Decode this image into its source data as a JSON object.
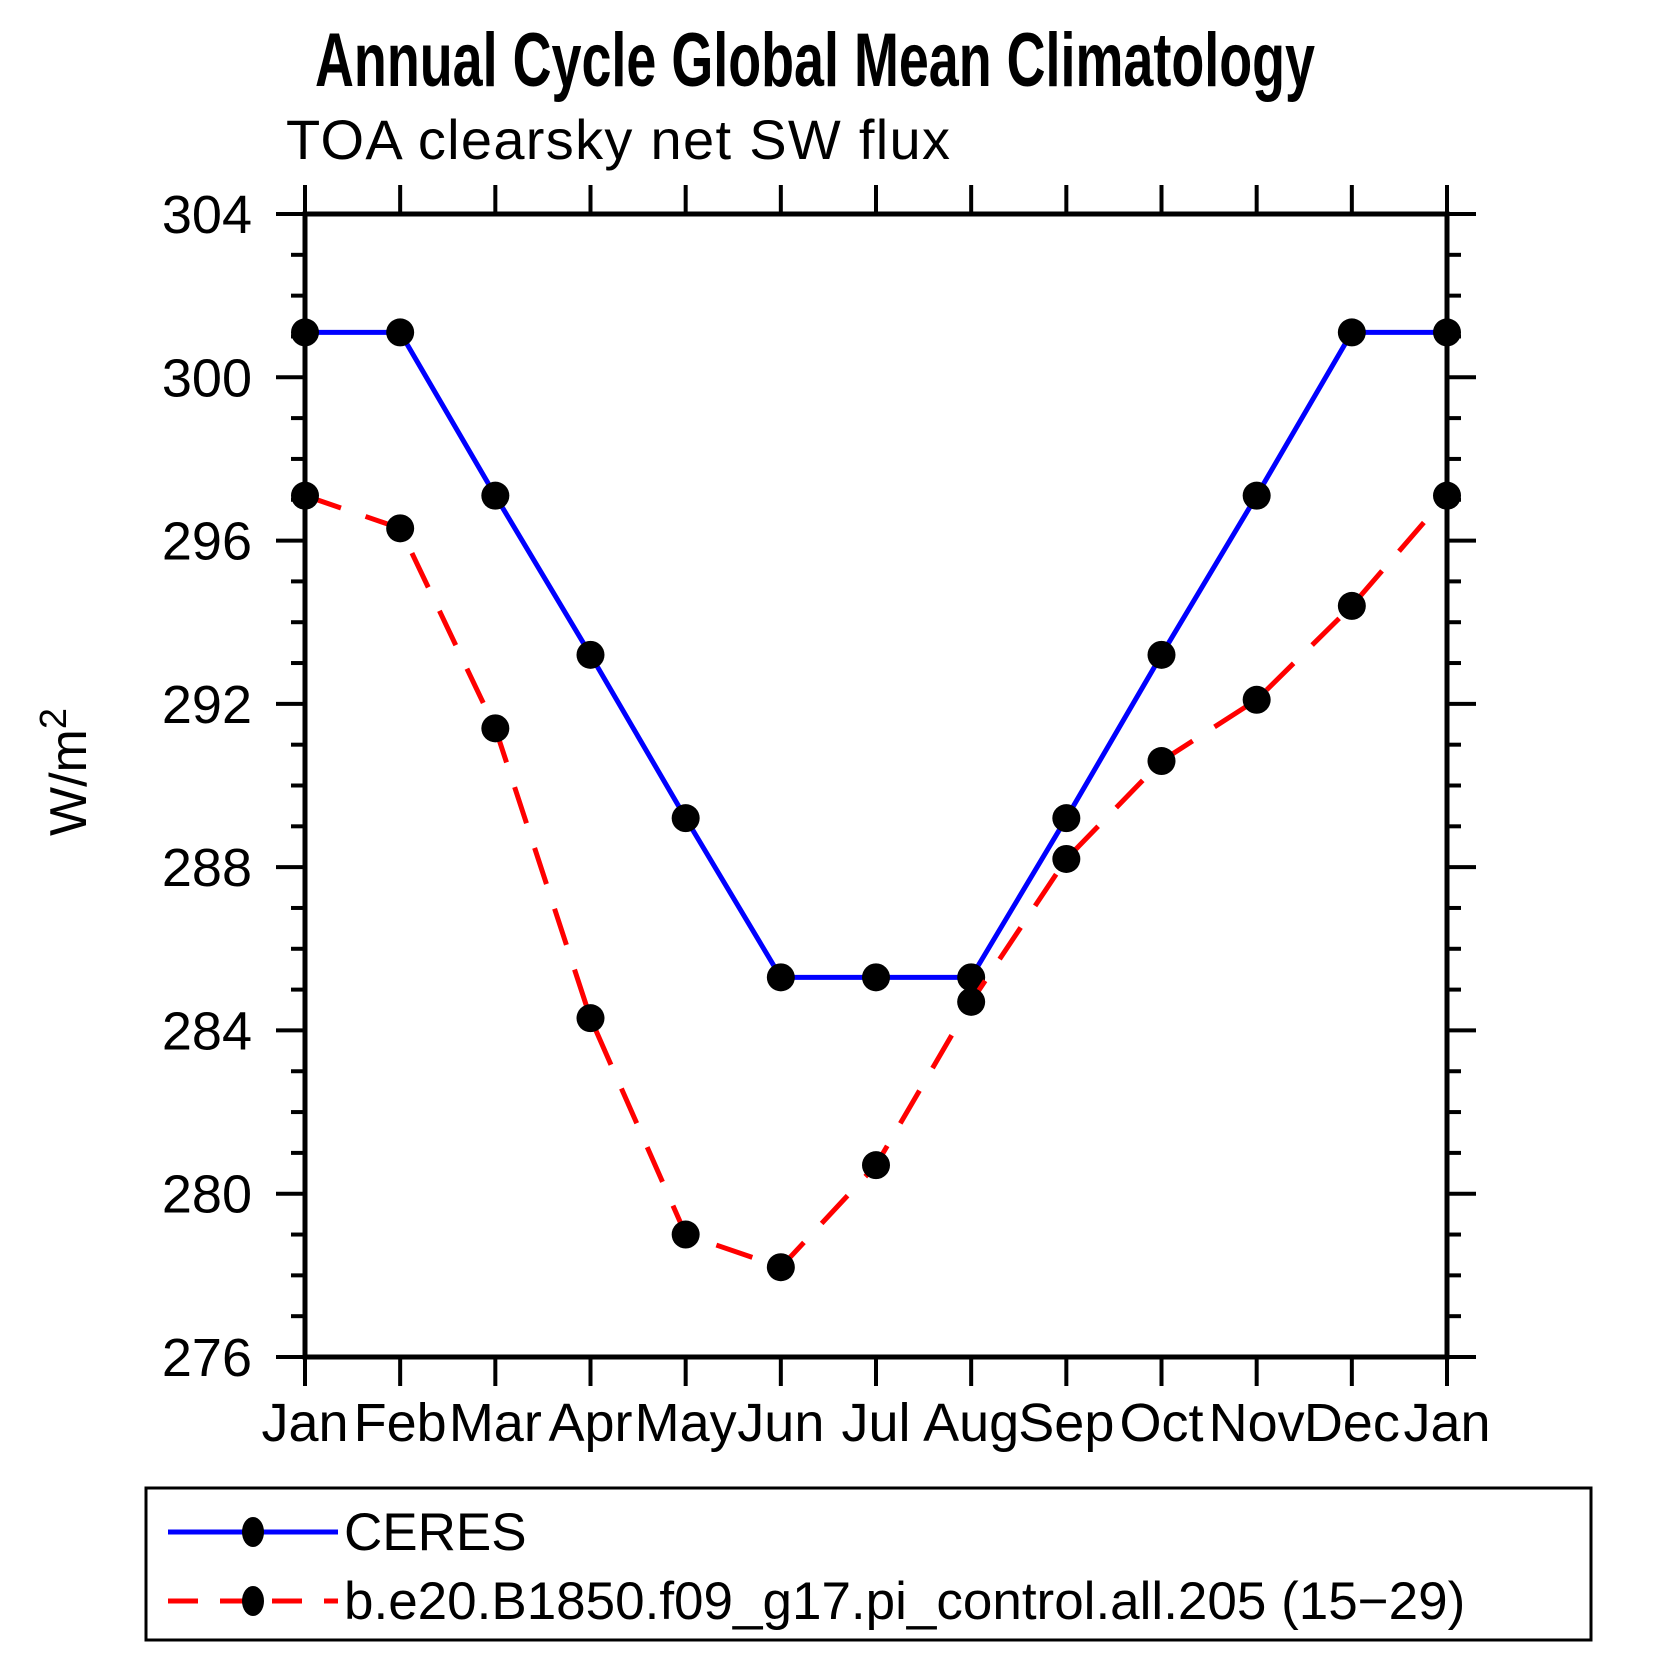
{
  "page": {
    "background": "#ffffff",
    "foreground": "#000000"
  },
  "title": {
    "text": "Annual Cycle Global Mean Climatology"
  },
  "subtitle": {
    "text": "TOA clearsky net SW flux"
  },
  "y_axis": {
    "label_base": "W/m",
    "label_exponent": "2",
    "major_tick_values": [
      304,
      300,
      296,
      292,
      288,
      284,
      280,
      276
    ]
  },
  "chart_data": {
    "type": "line",
    "title": "Annual Cycle Global Mean Climatology",
    "subtitle": "TOA clearsky net SW flux",
    "ylabel": "W/m^2",
    "xlabel": "",
    "categories": [
      "Jan",
      "Feb",
      "Mar",
      "Apr",
      "May",
      "Jun",
      "Jul",
      "Aug",
      "Sep",
      "Oct",
      "Nov",
      "Dec",
      "Jan"
    ],
    "ylim": [
      276,
      304
    ],
    "ytick_major_step": 4,
    "ytick_minor_step": 1,
    "grid": false,
    "legend_position": "bottom",
    "marker_color": "#000000",
    "series": [
      {
        "name": "CERES",
        "color": "#0000ff",
        "line_style": "solid",
        "values": [
          301.1,
          301.1,
          297.1,
          293.2,
          289.2,
          285.3,
          285.3,
          285.3,
          289.2,
          293.2,
          297.1,
          301.1,
          301.1
        ]
      },
      {
        "name": "b.e20.B1850.f09_g17.pi_control.all.205 (15−29)",
        "color": "#ff0000",
        "line_style": "dashed",
        "values": [
          297.1,
          296.3,
          291.4,
          284.3,
          279.0,
          278.2,
          280.7,
          284.7,
          288.2,
          290.6,
          292.1,
          294.4,
          297.1
        ]
      }
    ]
  }
}
